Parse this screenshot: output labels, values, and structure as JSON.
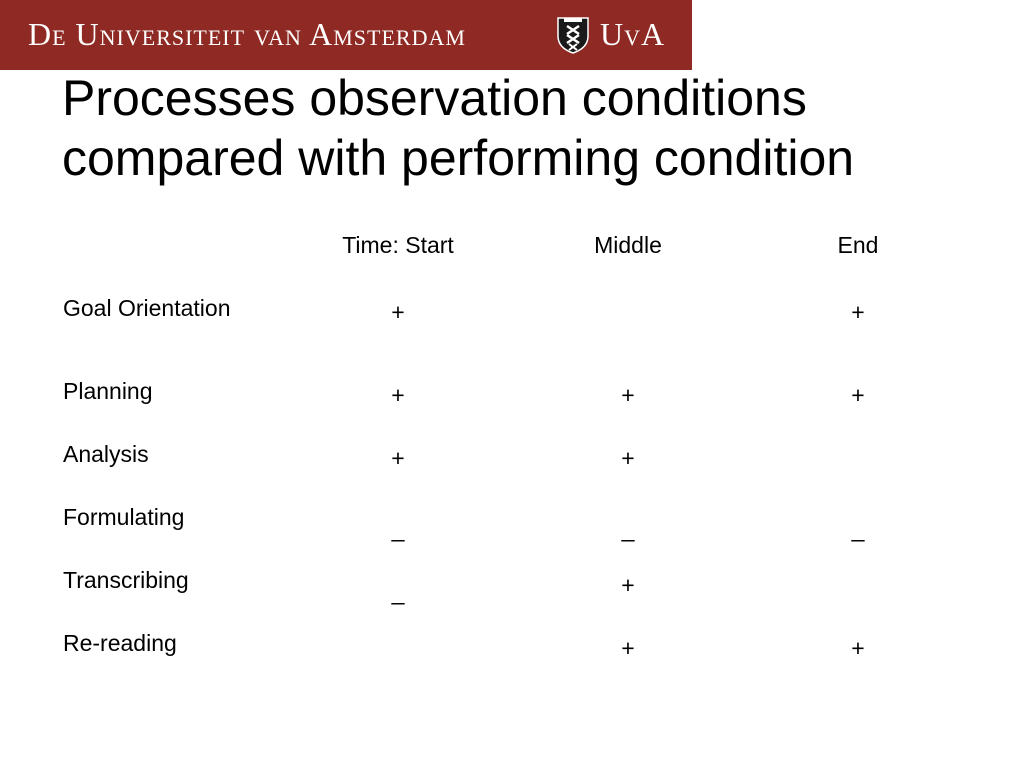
{
  "header": {
    "university_name": "De Universiteit van Amsterdam",
    "abbreviation": "UvA",
    "crest_icon": "uva-crest-icon",
    "colors": {
      "banner": "#8e2a23",
      "text": "#ffffff"
    }
  },
  "slide": {
    "title_line1": "Processes observation conditions",
    "title_line2": "compared with performing condition"
  },
  "table": {
    "columns": [
      "Time: Start",
      "Middle",
      "End"
    ],
    "rows": [
      {
        "label": "Goal Orientation",
        "start": "+",
        "middle": "",
        "end": "+"
      },
      {
        "label": "Planning",
        "start": "+",
        "middle": "+",
        "end": "+"
      },
      {
        "label": "Analysis",
        "start": "+",
        "middle": "+",
        "end": ""
      },
      {
        "label": "Formulating",
        "start": "_",
        "middle": "_",
        "end": "_"
      },
      {
        "label": "Transcribing",
        "start": "_",
        "middle": "+",
        "end": ""
      },
      {
        "label": "Re-reading",
        "start": "",
        "middle": "+",
        "end": "+"
      }
    ]
  }
}
